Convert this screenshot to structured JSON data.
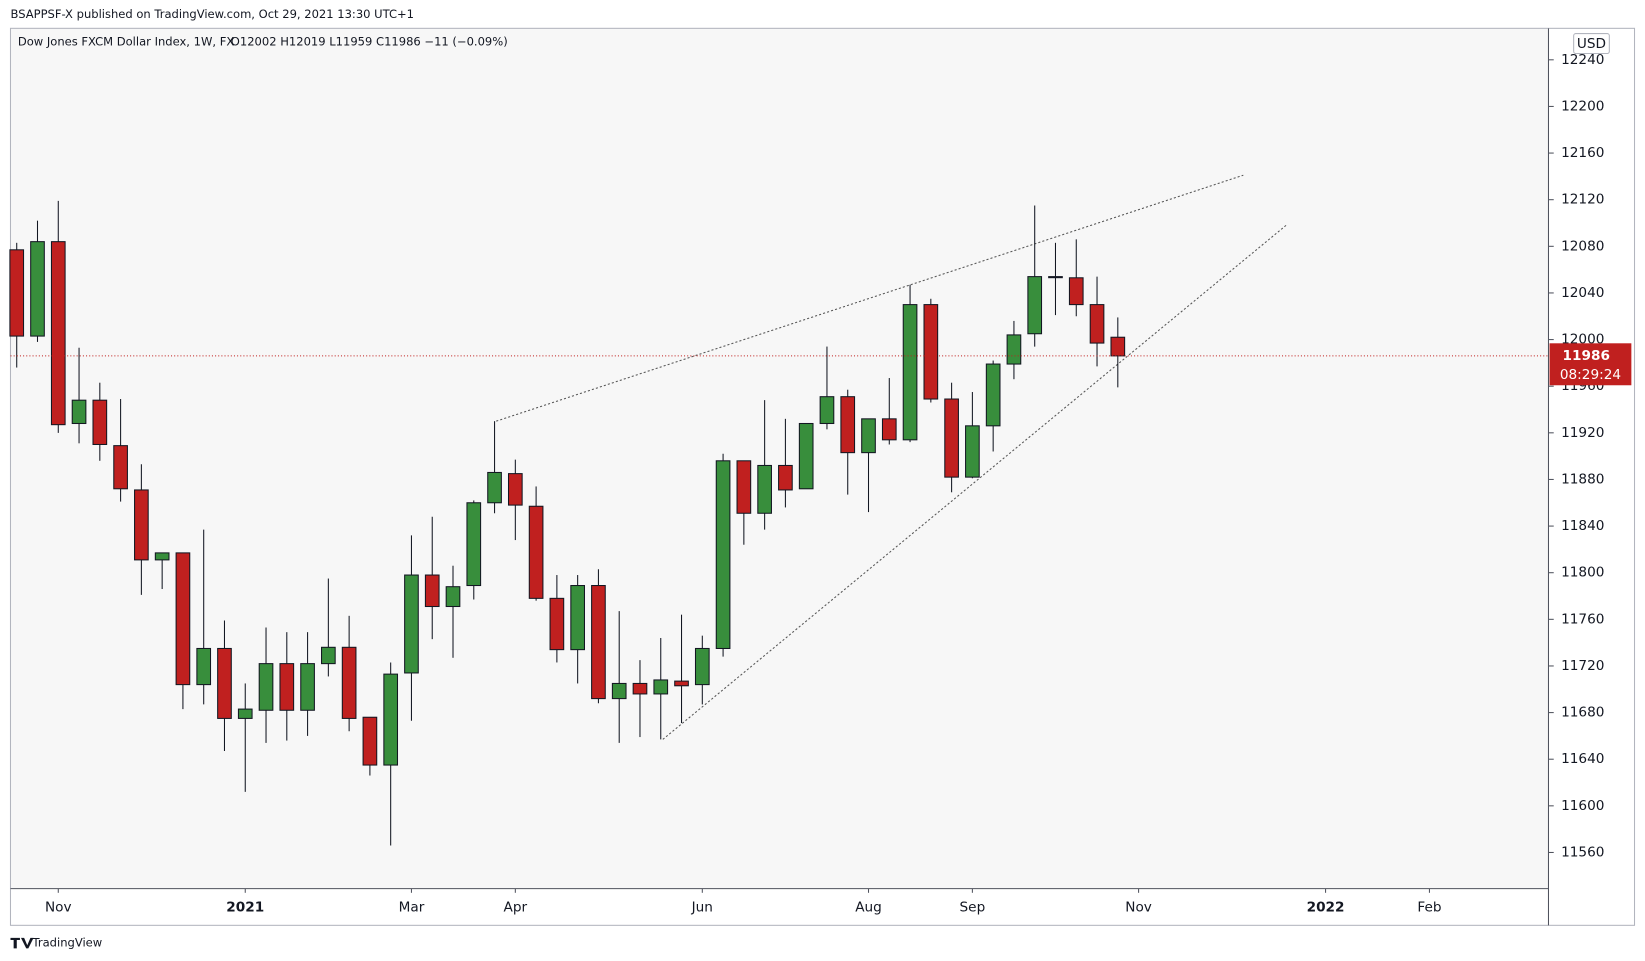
{
  "chart_data": {
    "type": "candlestick",
    "publisher": "BSAPPSF-X published on TradingView.com, Oct 29, 2021 13:30 UTC+1",
    "title": "Dow Jones FXCM Dollar Index, 1W, FX",
    "ohlc_label": "O12002 H12019 L11959 C11986 −11 (−0.09%)",
    "currency": "USD",
    "footer": "TradingView",
    "categories": [
      null,
      null,
      null,
      null,
      null,
      null,
      null,
      null,
      null,
      null,
      null,
      null,
      null,
      null,
      null,
      null,
      null,
      null,
      null,
      null,
      null,
      null,
      null,
      null,
      null,
      null,
      null,
      null,
      null,
      null,
      null,
      null,
      null,
      null,
      null,
      null,
      null,
      null,
      null,
      null,
      null,
      null,
      null,
      null,
      null,
      null,
      null,
      null,
      null,
      null,
      null,
      null,
      null,
      null
    ],
    "open": [
      12077,
      12003,
      12084,
      11928,
      11948,
      11909,
      11871,
      11811,
      11817,
      11704,
      11735,
      11675,
      11682,
      11722,
      11682,
      11722,
      11736,
      11676,
      11635,
      11714,
      11798,
      11771,
      11789,
      11860,
      11885,
      11857,
      11778,
      11734,
      11789,
      11692,
      11705,
      11696,
      11707,
      11704,
      11735,
      11896,
      11851,
      11892,
      11872,
      11928,
      11951,
      11903,
      11932,
      11914,
      12030,
      11949,
      11882,
      11926,
      11979,
      12005,
      12054,
      12053,
      12030,
      12002
    ],
    "high": [
      12083,
      12102,
      12119,
      11993,
      11963,
      11949,
      11893,
      11817,
      11817,
      11837,
      11759,
      11705,
      11753,
      11749,
      11749,
      11795,
      11763,
      11676,
      11723,
      11832,
      11848,
      11806,
      11862,
      11930,
      11897,
      11874,
      11798,
      11798,
      11803,
      11767,
      11725,
      11744,
      11764,
      11746,
      11902,
      11896,
      11948,
      11932,
      11928,
      11994,
      11957,
      11932,
      11967,
      12047,
      12035,
      11963,
      11955,
      11982,
      12016,
      12115,
      12083,
      12086,
      12054,
      12019
    ],
    "low": [
      11976,
      11998,
      11920,
      11911,
      11896,
      11861,
      11781,
      11786,
      11683,
      11687,
      11647,
      11612,
      11654,
      11656,
      11660,
      11711,
      11664,
      11626,
      11566,
      11673,
      11743,
      11727,
      11777,
      11851,
      11828,
      11776,
      11723,
      11705,
      11688,
      11654,
      11659,
      11657,
      11671,
      11687,
      11728,
      11824,
      11837,
      11856,
      11872,
      11923,
      11867,
      11852,
      11910,
      11912,
      11946,
      11869,
      11881,
      11904,
      11966,
      11994,
      12021,
      12020,
      11977,
      11959
    ],
    "close": [
      12003,
      12084,
      11927,
      11948,
      11910,
      11872,
      11811,
      11817,
      11704,
      11735,
      11675,
      11683,
      11722,
      11682,
      11722,
      11736,
      11675,
      11635,
      11713,
      11798,
      11771,
      11788,
      11860,
      11886,
      11858,
      11778,
      11734,
      11789,
      11692,
      11705,
      11696,
      11708,
      11703,
      11735,
      11896,
      11851,
      11892,
      11871,
      11928,
      11951,
      11903,
      11932,
      11914,
      12030,
      11949,
      11882,
      11926,
      11979,
      12004,
      12054,
      12054,
      12030,
      11997,
      11986
    ],
    "up_color": "#388e3c",
    "down_color": "#c0201f",
    "doji_color": "#131722",
    "last_price": 11986,
    "last_price_color": "#c0201f",
    "countdown": "08:29:24",
    "trendlines": [
      {
        "x": [
          23.08,
          59.04
        ],
        "y": [
          11930,
          12141
        ]
      },
      {
        "x": [
          31.1,
          61.1
        ],
        "y": [
          11657,
          12098
        ]
      }
    ],
    "xlim": [
      -0.3,
      73.73
    ],
    "ylim": [
      11529,
      12267
    ],
    "yticks": [
      11560,
      11600,
      11640,
      11680,
      11720,
      11760,
      11800,
      11840,
      11880,
      11920,
      11960,
      12000,
      12040,
      12080,
      12120,
      12160,
      12200,
      12240
    ],
    "xticks": [
      {
        "value": 2,
        "label": "Nov"
      },
      {
        "value": 11,
        "label": "2021"
      },
      {
        "value": 19,
        "label": "Mar"
      },
      {
        "value": 24,
        "label": "Apr"
      },
      {
        "value": 33,
        "label": "Jun"
      },
      {
        "value": 41,
        "label": "Aug"
      },
      {
        "value": 46,
        "label": "Sep"
      },
      {
        "value": 54,
        "label": "Nov"
      },
      {
        "value": 63,
        "label": "2022"
      },
      {
        "value": 68,
        "label": "Feb"
      }
    ]
  }
}
